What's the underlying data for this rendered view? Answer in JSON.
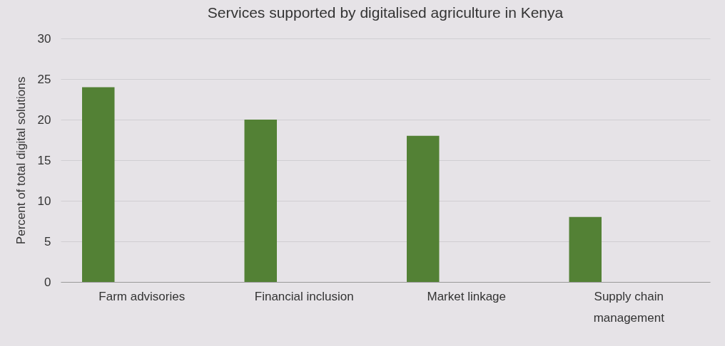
{
  "chart_data": {
    "type": "bar",
    "title": "Services supported by digitalised agriculture in Kenya",
    "ylabel": "Percent of total digital solutions",
    "categories": [
      "Farm advisories",
      "Financial inclusion",
      "Market linkage",
      "Supply chain management"
    ],
    "values": [
      24,
      20,
      18,
      8
    ],
    "color": "#538135",
    "ylim": [
      0,
      30
    ],
    "yticks": [
      0,
      5,
      10,
      15,
      20,
      25,
      30
    ],
    "grid": "y"
  }
}
